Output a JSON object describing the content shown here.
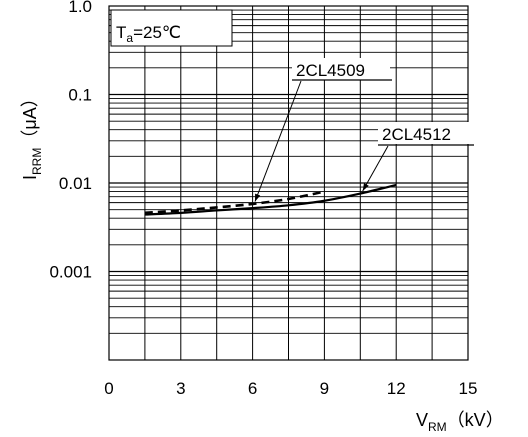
{
  "chart_data": {
    "type": "line",
    "title": "",
    "xlabel_main": "V",
    "xlabel_sub": "RM",
    "xlabel_unit": "（kV）",
    "ylabel_main": "I",
    "ylabel_sub": "RRM",
    "ylabel_unit": "（μA）",
    "x_ticks": [
      "0",
      "3",
      "6",
      "9",
      "12",
      "15"
    ],
    "y_ticks": [
      "1.0",
      "0.1",
      "0.01",
      "0.001"
    ],
    "xlim": [
      0,
      15
    ],
    "ylim": [
      0.0001,
      1.0
    ],
    "y_scale": "log",
    "grid": true,
    "condition_main": "T",
    "condition_sub": "a",
    "condition_rest": "=25℃",
    "series": [
      {
        "name": "2CL4509",
        "style": "dashed",
        "x": [
          1.5,
          3,
          4.5,
          6,
          7.5,
          9
        ],
        "y": [
          0.0046,
          0.0049,
          0.0053,
          0.0058,
          0.0066,
          0.008
        ]
      },
      {
        "name": "2CL4512",
        "style": "solid",
        "x": [
          1.5,
          3,
          4.5,
          6,
          7.5,
          9,
          10.5,
          12
        ],
        "y": [
          0.0044,
          0.0046,
          0.0049,
          0.0052,
          0.0056,
          0.0063,
          0.0076,
          0.0095
        ]
      }
    ],
    "annotations": [
      {
        "text": "2CL4509",
        "target_series": "2CL4509",
        "target_x": 6.1
      },
      {
        "text": "2CL4512",
        "target_series": "2CL4512",
        "target_x": 10.6
      }
    ]
  }
}
